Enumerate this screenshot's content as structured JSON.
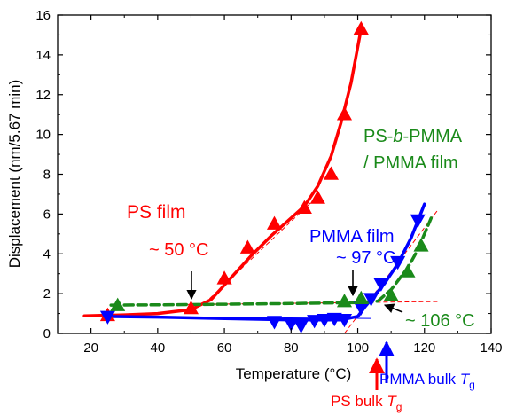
{
  "chart_data": {
    "type": "scatter",
    "xlabel_main": "Temperature (",
    "xlabel_unit": "°C",
    "xlabel_end": ")",
    "ylabel": "Displacement (nm/5.67 min)",
    "xlim": [
      10,
      140
    ],
    "ylim": [
      0,
      16
    ],
    "xticks": [
      20,
      40,
      60,
      80,
      100,
      120,
      140
    ],
    "yticks": [
      0,
      2,
      4,
      6,
      8,
      10,
      12,
      14,
      16
    ],
    "grid": false,
    "series": [
      {
        "name": "PS film",
        "label_text": "PS film",
        "color": "#ff0000",
        "marker": "triangle-up",
        "points": [
          [
            25,
            0.9
          ],
          [
            50,
            1.25
          ],
          [
            60,
            2.75
          ],
          [
            67,
            4.3
          ],
          [
            75,
            5.5
          ],
          [
            84,
            6.3
          ],
          [
            88,
            6.8
          ],
          [
            92,
            8.0
          ],
          [
            96,
            11.0
          ],
          [
            101,
            15.3
          ]
        ],
        "fit_curve": [
          [
            18,
            0.88
          ],
          [
            30,
            0.93
          ],
          [
            40,
            1.0
          ],
          [
            50,
            1.2
          ],
          [
            56,
            1.7
          ],
          [
            62,
            2.8
          ],
          [
            68,
            3.9
          ],
          [
            74,
            4.9
          ],
          [
            80,
            5.8
          ],
          [
            84,
            6.4
          ],
          [
            88,
            7.4
          ],
          [
            92,
            8.9
          ],
          [
            95,
            10.6
          ],
          [
            98,
            12.6
          ],
          [
            101,
            15.3
          ]
        ],
        "transition_label": "~ 50 °C"
      },
      {
        "name": "PMMA film",
        "label_text": "PMMA film",
        "color": "#0000ff",
        "marker": "triangle-down",
        "points": [
          [
            25,
            0.85
          ],
          [
            75,
            0.6
          ],
          [
            80,
            0.5
          ],
          [
            83,
            0.4
          ],
          [
            87,
            0.65
          ],
          [
            90,
            0.7
          ],
          [
            93,
            0.75
          ],
          [
            96,
            0.7
          ],
          [
            101,
            1.3
          ],
          [
            104,
            1.75
          ],
          [
            107,
            2.5
          ],
          [
            112,
            3.6
          ],
          [
            118,
            5.7
          ]
        ],
        "fit_curve": [
          [
            24,
            0.85
          ],
          [
            40,
            0.82
          ],
          [
            60,
            0.75
          ],
          [
            80,
            0.68
          ],
          [
            95,
            0.68
          ],
          [
            100,
            0.85
          ],
          [
            102,
            1.3
          ],
          [
            105,
            1.9
          ],
          [
            108,
            2.5
          ],
          [
            112,
            3.5
          ],
          [
            116,
            4.8
          ],
          [
            120,
            6.5
          ]
        ],
        "transition_label": "~ 97 °C"
      },
      {
        "name": "PS-b-PMMA / PMMA film",
        "label_line1_a": "PS-",
        "label_line1_b": "b",
        "label_line1_c": "-PMMA",
        "label_line2": "/ PMMA film",
        "color": "#1a8a1a",
        "marker": "triangle-up",
        "points": [
          [
            28,
            1.4
          ],
          [
            96,
            1.6
          ],
          [
            101,
            1.75
          ],
          [
            110,
            1.9
          ],
          [
            115,
            3.1
          ],
          [
            119,
            4.4
          ]
        ],
        "fit_curve": [
          [
            26,
            1.42
          ],
          [
            50,
            1.45
          ],
          [
            80,
            1.5
          ],
          [
            100,
            1.55
          ],
          [
            106,
            1.62
          ],
          [
            110,
            2.2
          ],
          [
            115,
            3.3
          ],
          [
            118,
            4.2
          ],
          [
            122,
            5.8
          ]
        ],
        "transition_label": "~ 106 °C"
      }
    ],
    "annotations": {
      "ps_bulk_label": "PS bulk ",
      "pmma_bulk_label": "PMMA bulk ",
      "tg_symbol": "T",
      "tg_subscript": "g",
      "ps_bulk_tg_x": 104,
      "pmma_bulk_tg_x": 109
    }
  }
}
